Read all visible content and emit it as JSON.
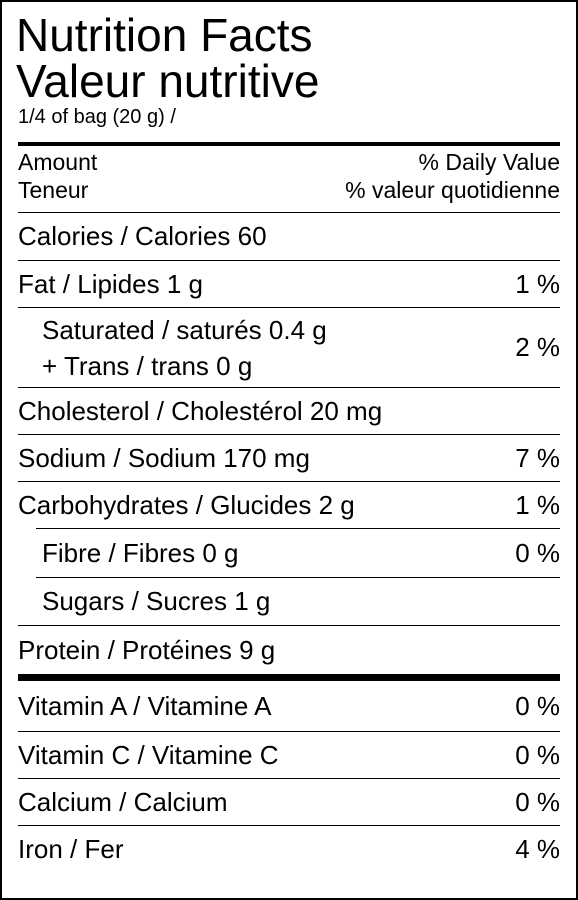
{
  "title_en": "Nutrition Facts",
  "title_fr": "Valeur nutritive",
  "serving": "1/4 of bag (20 g) /",
  "header": {
    "amount_en": "Amount",
    "amount_fr": "Teneur",
    "dv_en": "% Daily Value",
    "dv_fr": "% valeur quotidienne"
  },
  "nutrients": {
    "calories": "Calories / Calories 60",
    "fat": {
      "label": "Fat / Lipides 1 g",
      "dv": "1 %"
    },
    "saturated": {
      "label": "Saturated / saturés 0.4 g",
      "label2": "+ Trans / trans 0 g",
      "dv": "2 %"
    },
    "cholesterol": "Cholesterol / Cholestérol 20 mg",
    "sodium": {
      "label": "Sodium / Sodium 170 mg",
      "dv": "7 %"
    },
    "carbohydrates": {
      "label": "Carbohydrates / Glucides 2 g",
      "dv": "1 %"
    },
    "fibre": {
      "label": "Fibre / Fibres 0 g",
      "dv": "0 %"
    },
    "sugars": "Sugars / Sucres 1 g",
    "protein": "Protein / Protéines 9 g"
  },
  "vitamins": {
    "vitamin_a": {
      "label": "Vitamin A / Vitamine A",
      "dv": "0 %"
    },
    "vitamin_c": {
      "label": "Vitamin C / Vitamine C",
      "dv": "0 %"
    },
    "calcium": {
      "label": "Calcium / Calcium",
      "dv": "0 %"
    },
    "iron": {
      "label": "Iron / Fer",
      "dv": "4 %"
    }
  }
}
